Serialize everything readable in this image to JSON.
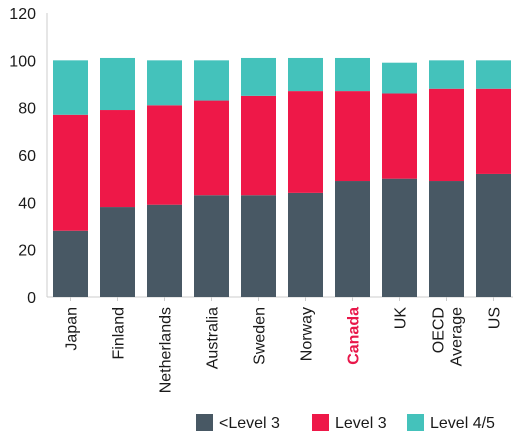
{
  "chart_data": {
    "type": "bar",
    "stacked": true,
    "categories": [
      "Japan",
      "Finland",
      "Netherlands",
      "Australia",
      "Sweden",
      "Norway",
      "Canada",
      "UK",
      "OECD Average",
      "US"
    ],
    "category_lines": [
      [
        "Japan"
      ],
      [
        "Finland"
      ],
      [
        "Netherlands"
      ],
      [
        "Australia"
      ],
      [
        "Sweden"
      ],
      [
        "Norway"
      ],
      [
        "Canada"
      ],
      [
        "UK"
      ],
      [
        "OECD",
        "Average"
      ],
      [
        "US"
      ]
    ],
    "highlight_category": "Canada",
    "series": [
      {
        "name": "<Level 3",
        "color": "#485864",
        "values": [
          28,
          38,
          39,
          43,
          43,
          44,
          49,
          50,
          49,
          52
        ]
      },
      {
        "name": "Level 3",
        "color": "#ee1848",
        "values": [
          49,
          41,
          42,
          40,
          42,
          43,
          38,
          36,
          39,
          36
        ]
      },
      {
        "name": "Level 4/5",
        "color": "#44c2bb",
        "values": [
          23,
          22,
          19,
          17,
          16,
          14,
          14,
          13,
          12,
          12
        ]
      }
    ],
    "title": "",
    "xlabel": "",
    "ylabel": "",
    "ylim": [
      0,
      120
    ],
    "yticks": [
      0,
      20,
      40,
      60,
      80,
      100,
      120
    ],
    "grid": false,
    "legend_position": "bottom-right"
  }
}
